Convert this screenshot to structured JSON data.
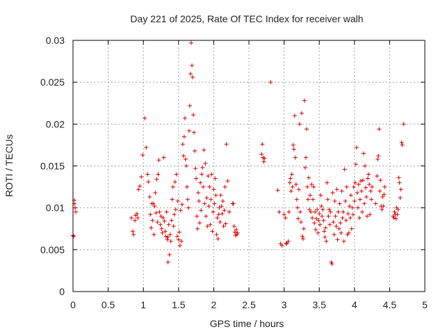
{
  "chart_data": {
    "type": "scatter",
    "title": "Day 221 of 2025, Rate Of TEC Index for receiver walh",
    "xlabel": "GPS time / hours",
    "ylabel": "ROTI / TECUs",
    "xlim": [
      0,
      5
    ],
    "ylim": [
      0,
      0.03
    ],
    "x_ticks": [
      "0",
      "0.5",
      "1",
      "1.5",
      "2",
      "2.5",
      "3",
      "3.5",
      "4",
      "4.5",
      "5"
    ],
    "y_ticks": [
      "0",
      "0.005",
      "0.01",
      "0.015",
      "0.02",
      "0.025",
      "0.03"
    ],
    "grid": true,
    "marker": "plus",
    "color": "#dd0000",
    "series": [
      {
        "points": [
          [
            0.0,
            0.0067
          ],
          [
            0.01,
            0.0066
          ],
          [
            0.02,
            0.0105
          ],
          [
            0.02,
            0.0109
          ],
          [
            0.03,
            0.01
          ],
          [
            0.04,
            0.0095
          ],
          [
            0.83,
            0.0088
          ],
          [
            0.85,
            0.0072
          ],
          [
            0.86,
            0.0068
          ],
          [
            0.88,
            0.0085
          ],
          [
            0.89,
            0.0091
          ],
          [
            0.91,
            0.0093
          ],
          [
            0.92,
            0.0088
          ],
          [
            0.93,
            0.0122
          ],
          [
            0.95,
            0.0126
          ],
          [
            0.97,
            0.0137
          ],
          [
            0.99,
            0.0163
          ],
          [
            1.02,
            0.0207
          ],
          [
            1.04,
            0.0172
          ],
          [
            1.06,
            0.014
          ],
          [
            1.07,
            0.0131
          ],
          [
            1.09,
            0.0113
          ],
          [
            1.1,
            0.0092
          ],
          [
            1.11,
            0.0076
          ],
          [
            1.12,
            0.0105
          ],
          [
            1.13,
            0.0085
          ],
          [
            1.14,
            0.0105
          ],
          [
            1.15,
            0.0068
          ],
          [
            1.16,
            0.0102
          ],
          [
            1.17,
            0.0118
          ],
          [
            1.18,
            0.0094
          ],
          [
            1.19,
            0.0134
          ],
          [
            1.2,
            0.0083
          ],
          [
            1.21,
            0.014
          ],
          [
            1.22,
            0.0157
          ],
          [
            1.23,
            0.0095
          ],
          [
            1.24,
            0.008
          ],
          [
            1.25,
            0.009
          ],
          [
            1.26,
            0.0075
          ],
          [
            1.27,
            0.007
          ],
          [
            1.28,
            0.0088
          ],
          [
            1.29,
            0.016
          ],
          [
            1.3,
            0.0084
          ],
          [
            1.31,
            0.0072
          ],
          [
            1.32,
            0.0066
          ],
          [
            1.33,
            0.0095
          ],
          [
            1.34,
            0.0062
          ],
          [
            1.35,
            0.0065
          ],
          [
            1.35,
            0.0035
          ],
          [
            1.36,
            0.008
          ],
          [
            1.37,
            0.0044
          ],
          [
            1.38,
            0.0068
          ],
          [
            1.39,
            0.006
          ],
          [
            1.4,
            0.0085
          ],
          [
            1.41,
            0.011
          ],
          [
            1.42,
            0.0125
          ],
          [
            1.43,
            0.0078
          ],
          [
            1.44,
            0.0092
          ],
          [
            1.45,
            0.0131
          ],
          [
            1.46,
            0.0098
          ],
          [
            1.47,
            0.014
          ],
          [
            1.48,
            0.0066
          ],
          [
            1.49,
            0.0108
          ],
          [
            1.5,
            0.0062
          ],
          [
            1.51,
            0.0071
          ],
          [
            1.52,
            0.0055
          ],
          [
            1.53,
            0.0097
          ],
          [
            1.54,
            0.006
          ],
          [
            1.55,
            0.0104
          ],
          [
            1.56,
            0.0176
          ],
          [
            1.57,
            0.0162
          ],
          [
            1.58,
            0.0185
          ],
          [
            1.59,
            0.0207
          ],
          [
            1.6,
            0.0158
          ],
          [
            1.61,
            0.015
          ],
          [
            1.62,
            0.0125
          ],
          [
            1.63,
            0.011
          ],
          [
            1.64,
            0.01
          ],
          [
            1.65,
            0.0192
          ],
          [
            1.66,
            0.0222
          ],
          [
            1.67,
            0.026
          ],
          [
            1.68,
            0.0297
          ],
          [
            1.69,
            0.027
          ],
          [
            1.7,
            0.0256
          ],
          [
            1.71,
            0.0211
          ],
          [
            1.72,
            0.019
          ],
          [
            1.73,
            0.0168
          ],
          [
            1.74,
            0.0147
          ],
          [
            1.75,
            0.0135
          ],
          [
            1.76,
            0.009
          ],
          [
            1.77,
            0.0075
          ],
          [
            1.78,
            0.0118
          ],
          [
            1.79,
            0.0108
          ],
          [
            1.8,
            0.0082
          ],
          [
            1.81,
            0.013
          ],
          [
            1.82,
            0.0097
          ],
          [
            1.83,
            0.014
          ],
          [
            1.84,
            0.0148
          ],
          [
            1.85,
            0.0125
          ],
          [
            1.86,
            0.0169
          ],
          [
            1.87,
            0.0105
          ],
          [
            1.88,
            0.0153
          ],
          [
            1.89,
            0.009
          ],
          [
            1.9,
            0.0112
          ],
          [
            1.91,
            0.0078
          ],
          [
            1.92,
            0.0138
          ],
          [
            1.93,
            0.0102
          ],
          [
            1.94,
            0.0125
          ],
          [
            1.95,
            0.008
          ],
          [
            1.96,
            0.011
          ],
          [
            1.97,
            0.014
          ],
          [
            1.98,
            0.0072
          ],
          [
            1.99,
            0.0095
          ],
          [
            2.0,
            0.0122
          ],
          [
            2.01,
            0.0105
          ],
          [
            2.02,
            0.0135
          ],
          [
            2.03,
            0.0115
          ],
          [
            2.04,
            0.0068
          ],
          [
            2.05,
            0.0088
          ],
          [
            2.06,
            0.0063
          ],
          [
            2.07,
            0.0092
          ],
          [
            2.08,
            0.01
          ],
          [
            2.09,
            0.0083
          ],
          [
            2.1,
            0.0115
          ],
          [
            2.11,
            0.0102
          ],
          [
            2.12,
            0.0093
          ],
          [
            2.13,
            0.0108
          ],
          [
            2.14,
            0.0078
          ],
          [
            2.15,
            0.0097
          ],
          [
            2.16,
            0.0125
          ],
          [
            2.17,
            0.0081
          ],
          [
            2.18,
            0.0176
          ],
          [
            2.2,
            0.0132
          ],
          [
            2.22,
            0.0095
          ],
          [
            2.27,
            0.0105
          ],
          [
            2.28,
            0.0105
          ],
          [
            2.29,
            0.0078
          ],
          [
            2.3,
            0.0071
          ],
          [
            2.31,
            0.0067
          ],
          [
            2.32,
            0.0074
          ],
          [
            2.33,
            0.0068
          ],
          [
            2.34,
            0.007
          ],
          [
            2.68,
            0.0164
          ],
          [
            2.69,
            0.0176
          ],
          [
            2.7,
            0.016
          ],
          [
            2.71,
            0.0155
          ],
          [
            2.72,
            0.0159
          ],
          [
            2.81,
            0.025
          ],
          [
            2.91,
            0.0121
          ],
          [
            2.93,
            0.0095
          ],
          [
            2.95,
            0.0057
          ],
          [
            2.97,
            0.0055
          ],
          [
            3.0,
            0.0092
          ],
          [
            3.02,
            0.0088
          ],
          [
            3.03,
            0.0057
          ],
          [
            3.04,
            0.0058
          ],
          [
            3.06,
            0.006
          ],
          [
            3.07,
            0.0095
          ],
          [
            3.08,
            0.013
          ],
          [
            3.09,
            0.0135
          ],
          [
            3.1,
            0.012
          ],
          [
            3.11,
            0.014
          ],
          [
            3.12,
            0.0125
          ],
          [
            3.13,
            0.0175
          ],
          [
            3.14,
            0.017
          ],
          [
            3.15,
            0.021
          ],
          [
            3.16,
            0.016
          ],
          [
            3.17,
            0.0128
          ],
          [
            3.18,
            0.011
          ],
          [
            3.19,
            0.01
          ],
          [
            3.2,
            0.0087
          ],
          [
            3.21,
            0.0122
          ],
          [
            3.22,
            0.02
          ],
          [
            3.23,
            0.0095
          ],
          [
            3.24,
            0.0083
          ],
          [
            3.25,
            0.0213
          ],
          [
            3.26,
            0.0066
          ],
          [
            3.27,
            0.0063
          ],
          [
            3.28,
            0.0075
          ],
          [
            3.29,
            0.0228
          ],
          [
            3.3,
            0.0148
          ],
          [
            3.31,
            0.016
          ],
          [
            3.32,
            0.0194
          ],
          [
            3.33,
            0.0125
          ],
          [
            3.34,
            0.011
          ],
          [
            3.35,
            0.0136
          ],
          [
            3.36,
            0.0098
          ],
          [
            3.37,
            0.0115
          ],
          [
            3.38,
            0.0095
          ],
          [
            3.39,
            0.0128
          ],
          [
            3.4,
            0.0088
          ],
          [
            3.41,
            0.011
          ],
          [
            3.42,
            0.0125
          ],
          [
            3.43,
            0.0082
          ],
          [
            3.44,
            0.0095
          ],
          [
            3.45,
            0.0074
          ],
          [
            3.46,
            0.0087
          ],
          [
            3.47,
            0.0098
          ],
          [
            3.48,
            0.007
          ],
          [
            3.49,
            0.0085
          ],
          [
            3.5,
            0.0093
          ],
          [
            3.51,
            0.008
          ],
          [
            3.52,
            0.0115
          ],
          [
            3.53,
            0.0102
          ],
          [
            3.54,
            0.009
          ],
          [
            3.55,
            0.0098
          ],
          [
            3.56,
            0.0085
          ],
          [
            3.57,
            0.0072
          ],
          [
            3.58,
            0.0065
          ],
          [
            3.59,
            0.0076
          ],
          [
            3.6,
            0.006
          ],
          [
            3.61,
            0.013
          ],
          [
            3.62,
            0.011
          ],
          [
            3.63,
            0.009
          ],
          [
            3.64,
            0.0098
          ],
          [
            3.65,
            0.008
          ],
          [
            3.66,
            0.0095
          ],
          [
            3.67,
            0.0035
          ],
          [
            3.68,
            0.0033
          ],
          [
            3.69,
            0.0118
          ],
          [
            3.7,
            0.0083
          ],
          [
            3.71,
            0.0068
          ],
          [
            3.72,
            0.0108
          ],
          [
            3.73,
            0.009
          ],
          [
            3.74,
            0.0078
          ],
          [
            3.75,
            0.0122
          ],
          [
            3.76,
            0.0062
          ],
          [
            3.77,
            0.0095
          ],
          [
            3.78,
            0.0075
          ],
          [
            3.79,
            0.0105
          ],
          [
            3.8,
            0.0082
          ],
          [
            3.81,
            0.007
          ],
          [
            3.82,
            0.012
          ],
          [
            3.83,
            0.0088
          ],
          [
            3.84,
            0.0095
          ],
          [
            3.85,
            0.006
          ],
          [
            3.86,
            0.0146
          ],
          [
            3.87,
            0.0108
          ],
          [
            3.88,
            0.0085
          ],
          [
            3.89,
            0.0125
          ],
          [
            3.9,
            0.0068
          ],
          [
            3.91,
            0.0093
          ],
          [
            3.92,
            0.007
          ],
          [
            3.93,
            0.0102
          ],
          [
            3.94,
            0.0088
          ],
          [
            3.95,
            0.0115
          ],
          [
            3.96,
            0.0075
          ],
          [
            3.97,
            0.01
          ],
          [
            3.98,
            0.0092
          ],
          [
            3.99,
            0.0125
          ],
          [
            4.0,
            0.0108
          ],
          [
            4.01,
            0.013
          ],
          [
            4.02,
            0.0152
          ],
          [
            4.03,
            0.0172
          ],
          [
            4.04,
            0.0118
          ],
          [
            4.05,
            0.01
          ],
          [
            4.06,
            0.0128
          ],
          [
            4.07,
            0.0088
          ],
          [
            4.08,
            0.011
          ],
          [
            4.09,
            0.0132
          ],
          [
            4.1,
            0.012
          ],
          [
            4.11,
            0.0095
          ],
          [
            4.12,
            0.0133
          ],
          [
            4.13,
            0.0165
          ],
          [
            4.14,
            0.0105
          ],
          [
            4.15,
            0.015
          ],
          [
            4.16,
            0.0124
          ],
          [
            4.17,
            0.0113
          ],
          [
            4.18,
            0.009
          ],
          [
            4.19,
            0.0135
          ],
          [
            4.2,
            0.014
          ],
          [
            4.21,
            0.0128
          ],
          [
            4.22,
            0.0092
          ],
          [
            4.23,
            0.012
          ],
          [
            4.24,
            0.011
          ],
          [
            4.25,
            0.0125
          ],
          [
            4.3,
            0.0105
          ],
          [
            4.32,
            0.0138
          ],
          [
            4.33,
            0.0158
          ],
          [
            4.34,
            0.0162
          ],
          [
            4.35,
            0.0194
          ],
          [
            4.36,
            0.012
          ],
          [
            4.37,
            0.0133
          ],
          [
            4.38,
            0.0102
          ],
          [
            4.39,
            0.0098
          ],
          [
            4.4,
            0.0113
          ],
          [
            4.41,
            0.0102
          ],
          [
            4.42,
            0.0116
          ],
          [
            4.43,
            0.0125
          ],
          [
            4.55,
            0.009
          ],
          [
            4.56,
            0.0088
          ],
          [
            4.57,
            0.0095
          ],
          [
            4.58,
            0.0092
          ],
          [
            4.59,
            0.0087
          ],
          [
            4.6,
            0.01
          ],
          [
            4.61,
            0.0092
          ],
          [
            4.62,
            0.0098
          ],
          [
            4.63,
            0.0136
          ],
          [
            4.64,
            0.013
          ],
          [
            4.65,
            0.0112
          ],
          [
            4.66,
            0.0122
          ],
          [
            4.67,
            0.0178
          ],
          [
            4.68,
            0.0175
          ],
          [
            4.7,
            0.02
          ]
        ]
      }
    ]
  }
}
